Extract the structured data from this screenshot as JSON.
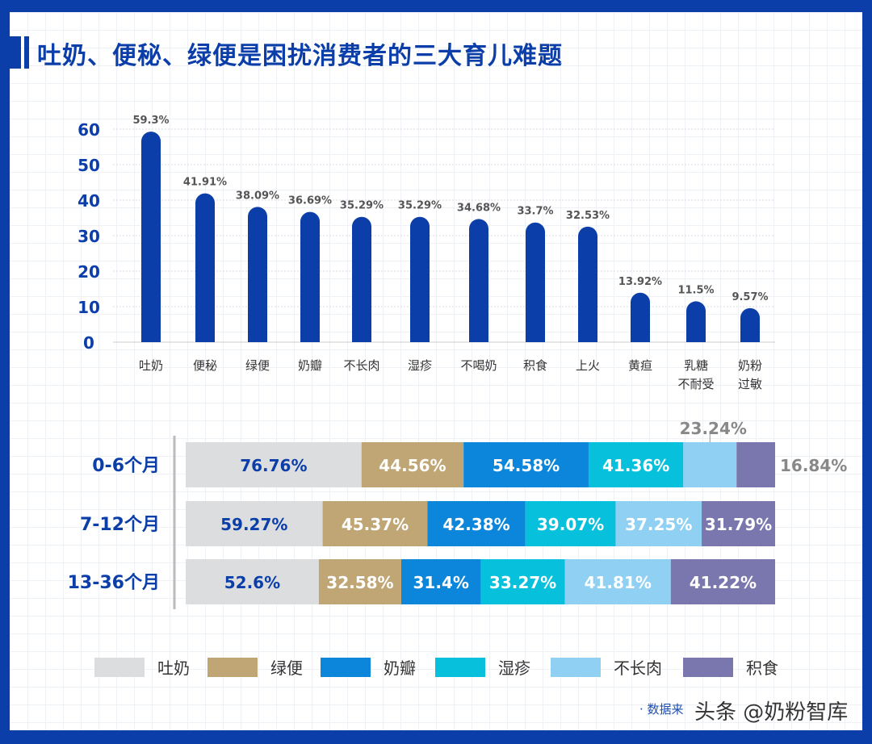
{
  "title": "吐奶、便秘、绿便是困扰消费者的三大育儿难题",
  "chart_data": [
    {
      "type": "bar",
      "categories": [
        "吐奶",
        "便秘",
        "绿便",
        "奶瓣",
        "不长肉",
        "湿疹",
        "不喝奶",
        "积食",
        "上火",
        "黄疸",
        "乳糖\n不耐受",
        "奶粉\n过敏"
      ],
      "values": [
        59.3,
        41.91,
        38.09,
        36.69,
        35.29,
        35.29,
        34.68,
        33.7,
        32.53,
        13.92,
        11.5,
        9.57
      ],
      "data_labels": [
        "59.3%",
        "41.91%",
        "38.09%",
        "36.69%",
        "35.29%",
        "35.29%",
        "34.68%",
        "33.7%",
        "32.53%",
        "13.92%",
        "11.5%",
        "9.57%"
      ],
      "yticks": [
        0,
        10,
        20,
        30,
        40,
        50,
        60
      ],
      "ylim": [
        0,
        60
      ],
      "grid": true,
      "color": "#0b3ea8"
    },
    {
      "type": "bar",
      "orientation": "horizontal",
      "stacked": true,
      "categories": [
        "0-6个月",
        "7-12个月",
        "13-36个月"
      ],
      "series": [
        {
          "name": "吐奶",
          "color": "#dcdddf",
          "values": [
            76.76,
            59.27,
            52.6
          ]
        },
        {
          "name": "绿便",
          "color": "#bfa674",
          "values": [
            44.56,
            45.37,
            32.58
          ]
        },
        {
          "name": "奶瓣",
          "color": "#0b86db",
          "values": [
            54.58,
            42.38,
            31.4
          ]
        },
        {
          "name": "湿疹",
          "color": "#07c1dc",
          "values": [
            41.36,
            39.07,
            33.27
          ]
        },
        {
          "name": "不长肉",
          "color": "#8fd0f3",
          "values": [
            23.24,
            37.25,
            41.81
          ]
        },
        {
          "name": "积食",
          "color": "#7a77ae",
          "values": [
            16.84,
            31.79,
            41.22
          ]
        }
      ],
      "legend": "bottom"
    }
  ],
  "source": "· 数据来",
  "watermark": "头条 @奶粉智库"
}
